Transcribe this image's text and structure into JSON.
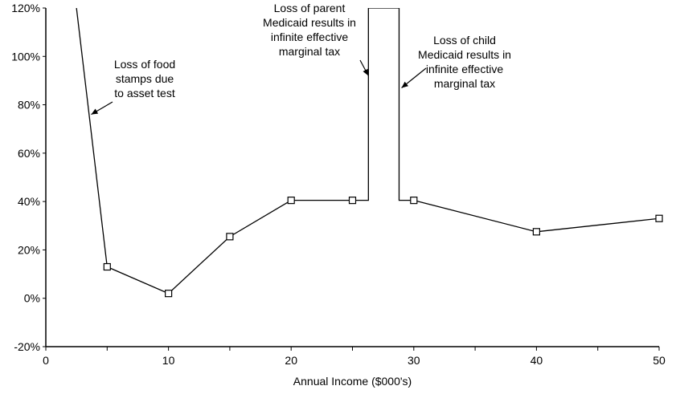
{
  "chart_data": {
    "type": "line",
    "title": "",
    "xlabel": "Annual Income ($000's)",
    "ylabel": "",
    "xlim": [
      0,
      50
    ],
    "ylim": [
      -20,
      120
    ],
    "x_ticks": [
      0,
      10,
      20,
      30,
      40,
      50
    ],
    "x_tick_labels": [
      "0",
      "10",
      "20",
      "30",
      "40",
      "50"
    ],
    "y_ticks": [
      -20,
      0,
      20,
      40,
      60,
      80,
      100,
      120
    ],
    "y_tick_labels": [
      "-20%",
      "0%",
      "20%",
      "40%",
      "60%",
      "80%",
      "100%",
      "120%"
    ],
    "grid": false,
    "legend": "none",
    "line_color": "#000000",
    "series": [
      {
        "x": [
          2.5,
          5,
          10,
          15,
          20,
          25,
          26.3,
          26.3,
          28.8,
          28.8,
          30,
          40,
          50
        ],
        "y": [
          120,
          13,
          2,
          25.5,
          40.5,
          40.5,
          40.5,
          120,
          120,
          40.5,
          40.5,
          27.5,
          33
        ]
      }
    ],
    "markers": {
      "x": [
        5,
        10,
        15,
        20,
        25,
        30,
        40,
        50
      ],
      "y": [
        13,
        2,
        25.5,
        40.5,
        40.5,
        40.5,
        27.5,
        33
      ]
    },
    "annotations": [
      {
        "lines": [
          "Loss of food",
          "stamps due",
          "to asset test"
        ],
        "arrow_to": [
          3.7,
          76
        ]
      },
      {
        "lines": [
          "Loss of parent",
          "Medicaid results in",
          "infinite effective",
          "marginal tax"
        ],
        "arrow_to": [
          26.3,
          92
        ]
      },
      {
        "lines": [
          "Loss of child",
          "Medicaid results in",
          "infinite effective",
          "marginal tax"
        ],
        "arrow_to": [
          29,
          87
        ]
      }
    ]
  }
}
